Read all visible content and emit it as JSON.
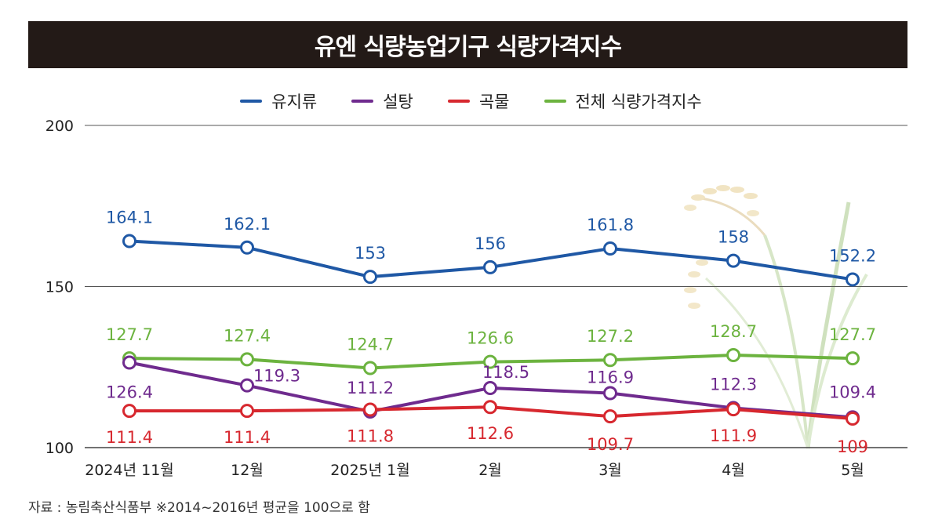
{
  "chart_data": {
    "type": "line",
    "title": "유엔 식량농업기구 식량가격지수",
    "categories": [
      "2024년 11월",
      "12월",
      "2025년 1월",
      "2월",
      "3월",
      "4월",
      "5월"
    ],
    "ylim": [
      100,
      200
    ],
    "yticks": [
      100,
      150,
      200
    ],
    "grid": true,
    "legend_position": "top-center",
    "series": [
      {
        "name": "유지류",
        "color": "#1f58a5",
        "values": [
          164.1,
          162.1,
          153,
          156,
          161.8,
          158,
          152.2
        ],
        "labels": [
          "164.1",
          "162.1",
          "153",
          "156",
          "161.8",
          "158",
          "152.2"
        ]
      },
      {
        "name": "설탕",
        "color": "#6f2b8e",
        "values": [
          126.4,
          119.3,
          111.2,
          118.5,
          116.9,
          112.3,
          109.4
        ],
        "labels": [
          "126.4",
          "119.3",
          "111.2",
          "118.5",
          "116.9",
          "112.3",
          "109.4"
        ]
      },
      {
        "name": "곡물",
        "color": "#d7282f",
        "values": [
          111.4,
          111.4,
          111.8,
          112.6,
          109.7,
          111.9,
          109
        ],
        "labels": [
          "111.4",
          "111.4",
          "111.8",
          "112.6",
          "109.7",
          "111.9",
          "109"
        ]
      },
      {
        "name": "전체 식량가격지수",
        "color": "#6cb33f",
        "values": [
          127.7,
          127.4,
          124.7,
          126.6,
          127.2,
          128.7,
          127.7
        ],
        "labels": [
          "127.7",
          "127.4",
          "124.7",
          "126.6",
          "127.2",
          "128.7",
          "127.7"
        ]
      }
    ]
  },
  "footnote": "자료 : 농림축산식품부 ※2014~2016년 평균을 100으로 함"
}
